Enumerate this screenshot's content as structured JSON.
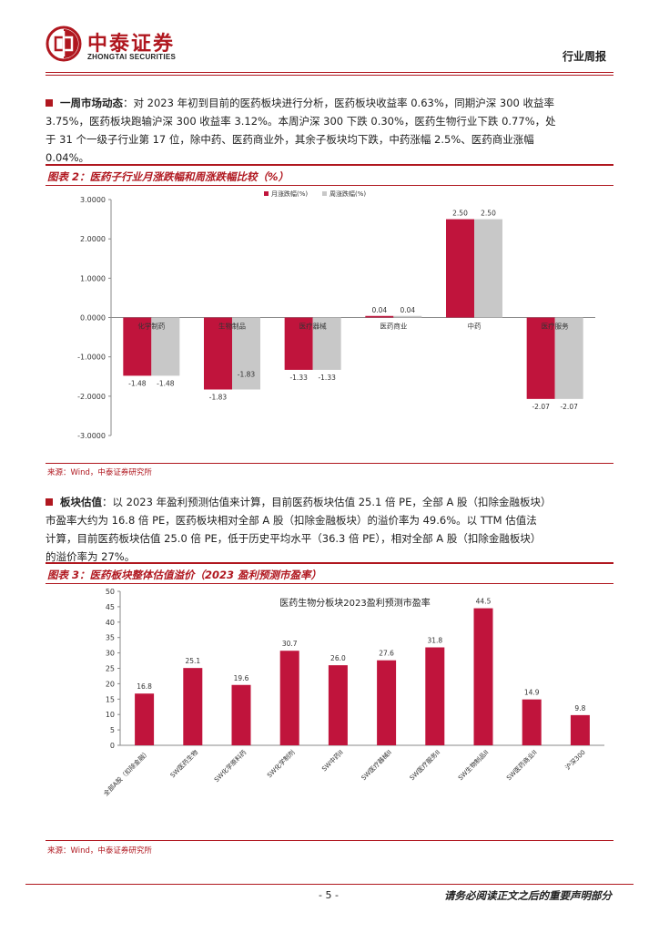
{
  "header": {
    "logo_cn": "中泰证券",
    "logo_en": "ZHONGTAI SECURITIES",
    "report_type": "行业周报"
  },
  "para1": {
    "lead": "一周市场动态",
    "lines": [
      "：对 2023 年初到目前的医药板块进行分析，医药板块收益率 0.63%，同期沪深 300 收益率",
      "3.75%，医药板块跑输沪深 300 收益率 3.12%。本周沪深 300 下跌 0.30%，医药生物行业下跌 0.77%，处",
      "于 31 个一级子行业第 17 位，除中药、医药商业外，其余子板块均下跌，中药涨幅 2.5%、医药商业涨幅",
      "0.04%。"
    ]
  },
  "fig2": {
    "title": "图表 2：医药子行业月涨跌幅和周涨跌幅比较（%）",
    "source": "来源：Wind，中泰证券研究所"
  },
  "para2": {
    "lead": "板块估值",
    "lines": [
      "：以 2023 年盈利预测估值来计算，目前医药板块估值 25.1 倍 PE，全部 A 股（扣除金融板块）",
      "市盈率大约为 16.8 倍 PE，医药板块相对全部 A 股（扣除金融板块）的溢价率为 49.6%。以 TTM 估值法",
      "计算，目前医药板块估值 25.0 倍 PE，低于历史平均水平（36.3 倍 PE），相对全部 A 股（扣除金融板块）",
      "的溢价率为 27%。"
    ]
  },
  "fig3": {
    "title": "图表 3：医药板块整体估值溢价（2023 盈利预测市盈率）",
    "source": "来源：Wind，中泰证券研究所"
  },
  "footer": {
    "page_number": "- 5 -",
    "disclaimer": "请务必阅读正文之后的重要声明部分"
  },
  "colors": {
    "brand_red": "#b0171f",
    "month_bar": "#c0143c",
    "week_bar": "#c8c8c8"
  },
  "chart_data": [
    {
      "type": "bar",
      "categories": [
        "化学制药",
        "生物制品",
        "医疗器械",
        "医药商业",
        "中药",
        "医疗服务"
      ],
      "series": [
        {
          "name": "月涨跌幅(%)",
          "values": [
            -1.48,
            -1.83,
            -1.33,
            0.04,
            2.5,
            -2.07
          ]
        },
        {
          "name": "周涨跌幅(%)",
          "values": [
            -1.48,
            -1.83,
            -1.33,
            0.04,
            2.5,
            -2.07
          ]
        }
      ],
      "data_labels": [
        [
          "-1.48",
          "-1.83",
          "-1.33",
          "0.04",
          "2.50",
          "-2.07"
        ],
        [
          "-1.48",
          "-1.83",
          "-1.33",
          "0.04",
          "2.50",
          "-2.07"
        ]
      ],
      "yticks": [
        "3.0000",
        "2.0000",
        "1.0000",
        "0.0000",
        "-1.0000",
        "-2.0000",
        "-3.0000"
      ],
      "ylim": [
        -3,
        3
      ],
      "legend_position": "top-left",
      "grid": false
    },
    {
      "type": "bar",
      "title": "医药生物分板块2023盈利预测市盈率",
      "categories": [
        "全部A股（扣除金融）",
        "SW医药生物",
        "SW化学原料药",
        "SW化学制剂",
        "SW中药II",
        "SW医疗器械II",
        "SW医疗服务II",
        "SW生物制品II",
        "SW医药商业II",
        "沪深300"
      ],
      "values": [
        16.8,
        25.1,
        19.6,
        30.7,
        26.0,
        27.6,
        31.8,
        44.5,
        14.9,
        9.8
      ],
      "data_labels": [
        "16.8",
        "25.1",
        "19.6",
        "30.7",
        "26.0",
        "27.6",
        "31.8",
        "44.5",
        "14.9",
        "9.8"
      ],
      "yticks": [
        "0",
        "5",
        "10",
        "15",
        "20",
        "25",
        "30",
        "35",
        "40",
        "45",
        "50"
      ],
      "ylim": [
        0,
        50
      ],
      "grid": false
    }
  ]
}
